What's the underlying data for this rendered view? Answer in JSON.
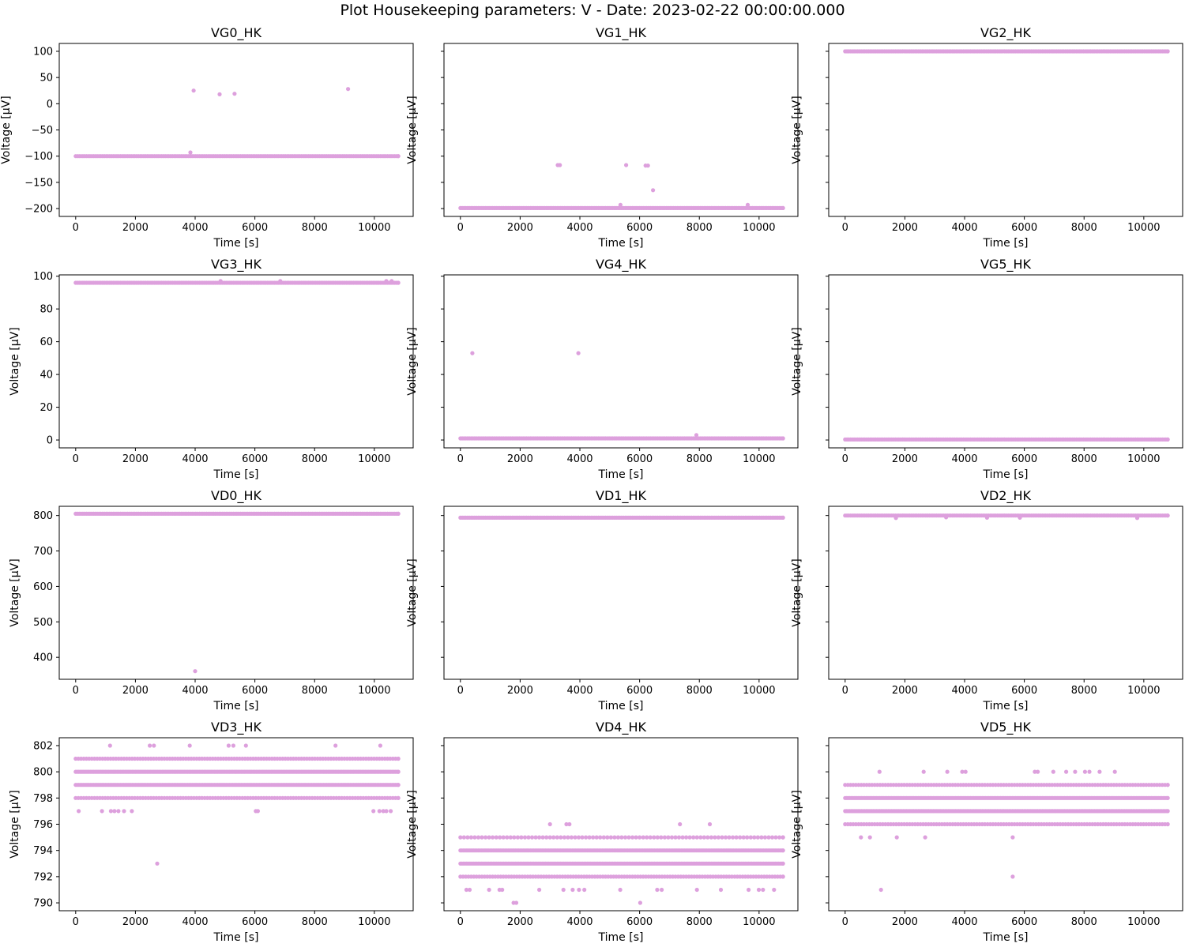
{
  "suptitle": "Plot Housekeeping parameters: V - Date: 2023-02-22 00:00:00.000",
  "marker_color": "#dda0dd",
  "chart_data": [
    {
      "type": "scatter",
      "title": "VG0_HK",
      "xlabel": "Time [s]",
      "ylabel": "Voltage [$\\mu$V]",
      "xlim": [
        -550,
        11300
      ],
      "ylim": [
        -215,
        115
      ],
      "xticks": [
        0,
        2000,
        4000,
        6000,
        8000,
        10000
      ],
      "yticks": [
        100,
        50,
        0,
        -50,
        -100,
        -150,
        -200
      ],
      "show_ytick_labels": true,
      "x_range": [
        0,
        10800
      ],
      "bands": [
        {
          "y": -100,
          "start": 0,
          "end": 10800,
          "step": 60
        }
      ],
      "points": [
        [
          3950,
          25
        ],
        [
          4820,
          18
        ],
        [
          5320,
          19
        ],
        [
          9120,
          28
        ],
        [
          3840,
          -93
        ]
      ]
    },
    {
      "type": "scatter",
      "title": "VG1_HK",
      "xlabel": "Time [s]",
      "ylabel": "Voltage [$\\mu$V]",
      "xlim": [
        -550,
        11300
      ],
      "ylim": [
        -215,
        115
      ],
      "xticks": [
        0,
        2000,
        4000,
        6000,
        8000,
        10000
      ],
      "yticks": [
        100,
        50,
        0,
        -50,
        -100,
        -150,
        -200
      ],
      "show_ytick_labels": false,
      "x_range": [
        0,
        10800
      ],
      "bands": [
        {
          "y": -199,
          "start": 0,
          "end": 10800,
          "step": 60
        }
      ],
      "points": [
        [
          3260,
          -117
        ],
        [
          3330,
          -117
        ],
        [
          5550,
          -117
        ],
        [
          6200,
          -118
        ],
        [
          6280,
          -118
        ],
        [
          6450,
          -165
        ],
        [
          5360,
          -193
        ],
        [
          9620,
          -193
        ]
      ]
    },
    {
      "type": "scatter",
      "title": "VG2_HK",
      "xlabel": "Time [s]",
      "ylabel": "Voltage [$\\mu$V]",
      "xlim": [
        -550,
        11300
      ],
      "ylim": [
        -215,
        115
      ],
      "xticks": [
        0,
        2000,
        4000,
        6000,
        8000,
        10000
      ],
      "yticks": [
        100,
        50,
        0,
        -50,
        -100,
        -150,
        -200
      ],
      "show_ytick_labels": false,
      "x_range": [
        0,
        10800
      ],
      "bands": [
        {
          "y": 100,
          "start": 0,
          "end": 10800,
          "step": 60
        }
      ],
      "points": []
    },
    {
      "type": "scatter",
      "title": "VG3_HK",
      "xlabel": "Time [s]",
      "ylabel": "Voltage [$\\mu$V]",
      "xlim": [
        -550,
        11300
      ],
      "ylim": [
        -4.8,
        100.8
      ],
      "xticks": [
        0,
        2000,
        4000,
        6000,
        8000,
        10000
      ],
      "yticks": [
        0,
        20,
        40,
        60,
        80,
        100
      ],
      "show_ytick_labels": true,
      "x_range": [
        0,
        10800
      ],
      "bands": [
        {
          "y": 96,
          "start": 0,
          "end": 10800,
          "step": 60
        }
      ],
      "points": [
        [
          4850,
          97
        ],
        [
          6850,
          97
        ],
        [
          10400,
          97
        ],
        [
          10580,
          97
        ]
      ]
    },
    {
      "type": "scatter",
      "title": "VG4_HK",
      "xlabel": "Time [s]",
      "ylabel": "Voltage [$\\mu$V]",
      "xlim": [
        -550,
        11300
      ],
      "ylim": [
        -4.8,
        100.8
      ],
      "xticks": [
        0,
        2000,
        4000,
        6000,
        8000,
        10000
      ],
      "yticks": [
        0,
        20,
        40,
        60,
        80,
        100
      ],
      "show_ytick_labels": false,
      "x_range": [
        0,
        10800
      ],
      "bands": [
        {
          "y": 1,
          "start": 0,
          "end": 10800,
          "step": 60
        }
      ],
      "points": [
        [
          400,
          53
        ],
        [
          3950,
          53
        ],
        [
          7900,
          3
        ]
      ]
    },
    {
      "type": "scatter",
      "title": "VG5_HK",
      "xlabel": "Time [s]",
      "ylabel": "Voltage [$\\mu$V]",
      "xlim": [
        -550,
        11300
      ],
      "ylim": [
        -4.8,
        100.8
      ],
      "xticks": [
        0,
        2000,
        4000,
        6000,
        8000,
        10000
      ],
      "yticks": [
        0,
        20,
        40,
        60,
        80,
        100
      ],
      "show_ytick_labels": false,
      "x_range": [
        0,
        10800
      ],
      "bands": [
        {
          "y": 0.3,
          "start": 0,
          "end": 10800,
          "step": 60
        }
      ],
      "points": []
    },
    {
      "type": "scatter",
      "title": "VD0_HK",
      "xlabel": "Time [s]",
      "ylabel": "Voltage [$\\mu$V]",
      "xlim": [
        -550,
        11300
      ],
      "ylim": [
        338,
        826
      ],
      "xticks": [
        0,
        2000,
        4000,
        6000,
        8000,
        10000
      ],
      "yticks": [
        400,
        500,
        600,
        700,
        800
      ],
      "show_ytick_labels": true,
      "x_range": [
        0,
        10800
      ],
      "bands": [
        {
          "y": 805,
          "start": 0,
          "end": 10800,
          "step": 60
        }
      ],
      "points": [
        [
          4000,
          361
        ]
      ]
    },
    {
      "type": "scatter",
      "title": "VD1_HK",
      "xlabel": "Time [s]",
      "ylabel": "Voltage [$\\mu$V]",
      "xlim": [
        -550,
        11300
      ],
      "ylim": [
        338,
        826
      ],
      "xticks": [
        0,
        2000,
        4000,
        6000,
        8000,
        10000
      ],
      "yticks": [
        400,
        500,
        600,
        700,
        800
      ],
      "show_ytick_labels": false,
      "x_range": [
        0,
        10800
      ],
      "bands": [
        {
          "y": 794,
          "start": 0,
          "end": 10800,
          "step": 60
        }
      ],
      "points": []
    },
    {
      "type": "scatter",
      "title": "VD2_HK",
      "xlabel": "Time [s]",
      "ylabel": "Voltage [$\\mu$V]",
      "xlim": [
        -550,
        11300
      ],
      "ylim": [
        338,
        826
      ],
      "xticks": [
        0,
        2000,
        4000,
        6000,
        8000,
        10000
      ],
      "yticks": [
        400,
        500,
        600,
        700,
        800
      ],
      "show_ytick_labels": false,
      "x_range": [
        0,
        10800
      ],
      "bands": [
        {
          "y": 800,
          "start": 0,
          "end": 10800,
          "step": 60
        }
      ],
      "points": [
        [
          1700,
          793
        ],
        [
          3380,
          795
        ],
        [
          4750,
          794
        ],
        [
          5850,
          794
        ],
        [
          9780,
          793
        ]
      ]
    },
    {
      "type": "scatter",
      "title": "VD3_HK",
      "xlabel": "Time [s]",
      "ylabel": "Voltage [$\\mu$V]",
      "xlim": [
        -550,
        11300
      ],
      "ylim": [
        789.4,
        802.6
      ],
      "xticks": [
        0,
        2000,
        4000,
        6000,
        8000,
        10000
      ],
      "yticks": [
        790,
        792,
        794,
        796,
        798,
        800,
        802
      ],
      "show_ytick_labels": true,
      "x_range": [
        0,
        10800
      ],
      "bands": [
        {
          "y": 801,
          "start": 0,
          "end": 10800,
          "step": 90
        },
        {
          "y": 800,
          "start": 0,
          "end": 10800,
          "step": 50
        },
        {
          "y": 799,
          "start": 0,
          "end": 10800,
          "step": 50
        },
        {
          "y": 798,
          "start": 0,
          "end": 10800,
          "step": 90
        }
      ],
      "points": [
        [
          1150,
          802
        ],
        [
          2480,
          802
        ],
        [
          2620,
          802
        ],
        [
          3820,
          802
        ],
        [
          5120,
          802
        ],
        [
          5280,
          802
        ],
        [
          5700,
          802
        ],
        [
          8700,
          802
        ],
        [
          10200,
          802
        ],
        [
          100,
          797
        ],
        [
          880,
          797
        ],
        [
          1180,
          797
        ],
        [
          1300,
          797
        ],
        [
          1430,
          797
        ],
        [
          1620,
          797
        ],
        [
          1880,
          797
        ],
        [
          6030,
          797
        ],
        [
          6100,
          797
        ],
        [
          9970,
          797
        ],
        [
          10170,
          797
        ],
        [
          10300,
          797
        ],
        [
          10400,
          797
        ],
        [
          10550,
          797
        ],
        [
          2730,
          793
        ]
      ]
    },
    {
      "type": "scatter",
      "title": "VD4_HK",
      "xlabel": "Time [s]",
      "ylabel": "Voltage [$\\mu$V]",
      "xlim": [
        -550,
        11300
      ],
      "ylim": [
        789.4,
        802.6
      ],
      "xticks": [
        0,
        2000,
        4000,
        6000,
        8000,
        10000
      ],
      "yticks": [
        790,
        792,
        794,
        796,
        798,
        800,
        802
      ],
      "show_ytick_labels": false,
      "x_range": [
        0,
        10800
      ],
      "bands": [
        {
          "y": 795,
          "start": 0,
          "end": 10800,
          "step": 120
        },
        {
          "y": 794,
          "start": 0,
          "end": 10800,
          "step": 50
        },
        {
          "y": 793,
          "start": 0,
          "end": 10800,
          "step": 50
        },
        {
          "y": 792,
          "start": 0,
          "end": 10800,
          "step": 90
        }
      ],
      "points": [
        [
          3000,
          796
        ],
        [
          3550,
          796
        ],
        [
          3650,
          796
        ],
        [
          7350,
          796
        ],
        [
          8350,
          796
        ],
        [
          200,
          791
        ],
        [
          310,
          791
        ],
        [
          960,
          791
        ],
        [
          1310,
          791
        ],
        [
          1400,
          791
        ],
        [
          2640,
          791
        ],
        [
          3450,
          791
        ],
        [
          3760,
          791
        ],
        [
          3970,
          791
        ],
        [
          4150,
          791
        ],
        [
          5350,
          791
        ],
        [
          6590,
          791
        ],
        [
          6740,
          791
        ],
        [
          7920,
          791
        ],
        [
          8720,
          791
        ],
        [
          9650,
          791
        ],
        [
          9990,
          791
        ],
        [
          10130,
          791
        ],
        [
          10500,
          791
        ],
        [
          1780,
          790
        ],
        [
          1870,
          790
        ],
        [
          6020,
          790
        ]
      ]
    },
    {
      "type": "scatter",
      "title": "VD5_HK",
      "xlabel": "Time [s]",
      "ylabel": "Voltage [$\\mu$V]",
      "xlim": [
        -550,
        11300
      ],
      "ylim": [
        789.4,
        802.6
      ],
      "xticks": [
        0,
        2000,
        4000,
        6000,
        8000,
        10000
      ],
      "yticks": [
        790,
        792,
        794,
        796,
        798,
        800,
        802
      ],
      "show_ytick_labels": false,
      "x_range": [
        0,
        10800
      ],
      "bands": [
        {
          "y": 799,
          "start": 0,
          "end": 10800,
          "step": 90
        },
        {
          "y": 798,
          "start": 0,
          "end": 10800,
          "step": 50
        },
        {
          "y": 797,
          "start": 0,
          "end": 10800,
          "step": 50
        },
        {
          "y": 796,
          "start": 0,
          "end": 10800,
          "step": 90
        }
      ],
      "points": [
        [
          1150,
          800
        ],
        [
          2630,
          800
        ],
        [
          3420,
          800
        ],
        [
          3920,
          800
        ],
        [
          4030,
          800
        ],
        [
          6350,
          800
        ],
        [
          6450,
          800
        ],
        [
          6970,
          800
        ],
        [
          7400,
          800
        ],
        [
          7700,
          800
        ],
        [
          8030,
          800
        ],
        [
          8180,
          800
        ],
        [
          8520,
          800
        ],
        [
          9030,
          800
        ],
        [
          530,
          795
        ],
        [
          830,
          795
        ],
        [
          1730,
          795
        ],
        [
          2680,
          795
        ],
        [
          5610,
          795
        ],
        [
          5610,
          792
        ],
        [
          1200,
          791
        ]
      ]
    }
  ]
}
